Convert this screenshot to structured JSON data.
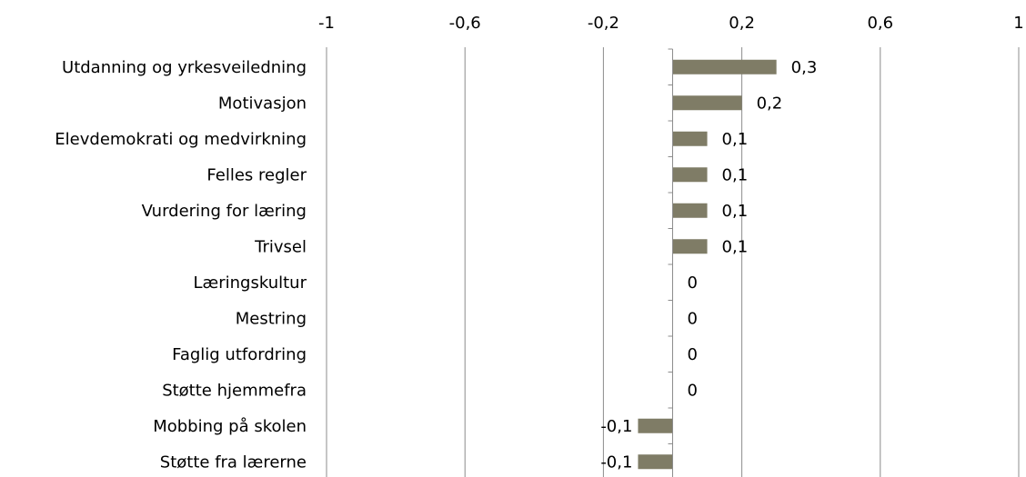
{
  "chart_data": {
    "type": "bar",
    "orientation": "horizontal",
    "categories": [
      "Utdanning og yrkesveiledning",
      "Motivasjon",
      "Elevdemokrati og medvirkning",
      "Felles regler",
      "Vurdering for læring",
      "Trivsel",
      "Læringskultur",
      "Mestring",
      "Faglig utfordring",
      "Støtte hjemmefra",
      "Mobbing på skolen",
      "Støtte fra lærerne"
    ],
    "values": [
      0.3,
      0.2,
      0.1,
      0.1,
      0.1,
      0.1,
      0,
      0,
      0,
      0,
      -0.1,
      -0.1
    ],
    "value_labels": [
      "0,3",
      "0,2",
      "0,1",
      "0,1",
      "0,1",
      "0,1",
      "0",
      "0",
      "0",
      "0",
      "-0,1",
      "-0,1"
    ],
    "xlim": [
      -1,
      1
    ],
    "xticks": [
      -1,
      -0.6,
      -0.2,
      0.2,
      0.6,
      1
    ],
    "xtick_labels": [
      "-1",
      "-0,6",
      "-0,2",
      "0,2",
      "0,6",
      "1"
    ],
    "axis_position": "top",
    "grid": true,
    "bar_color": "#7f7c66",
    "grid_color": "#8c8c8c"
  }
}
